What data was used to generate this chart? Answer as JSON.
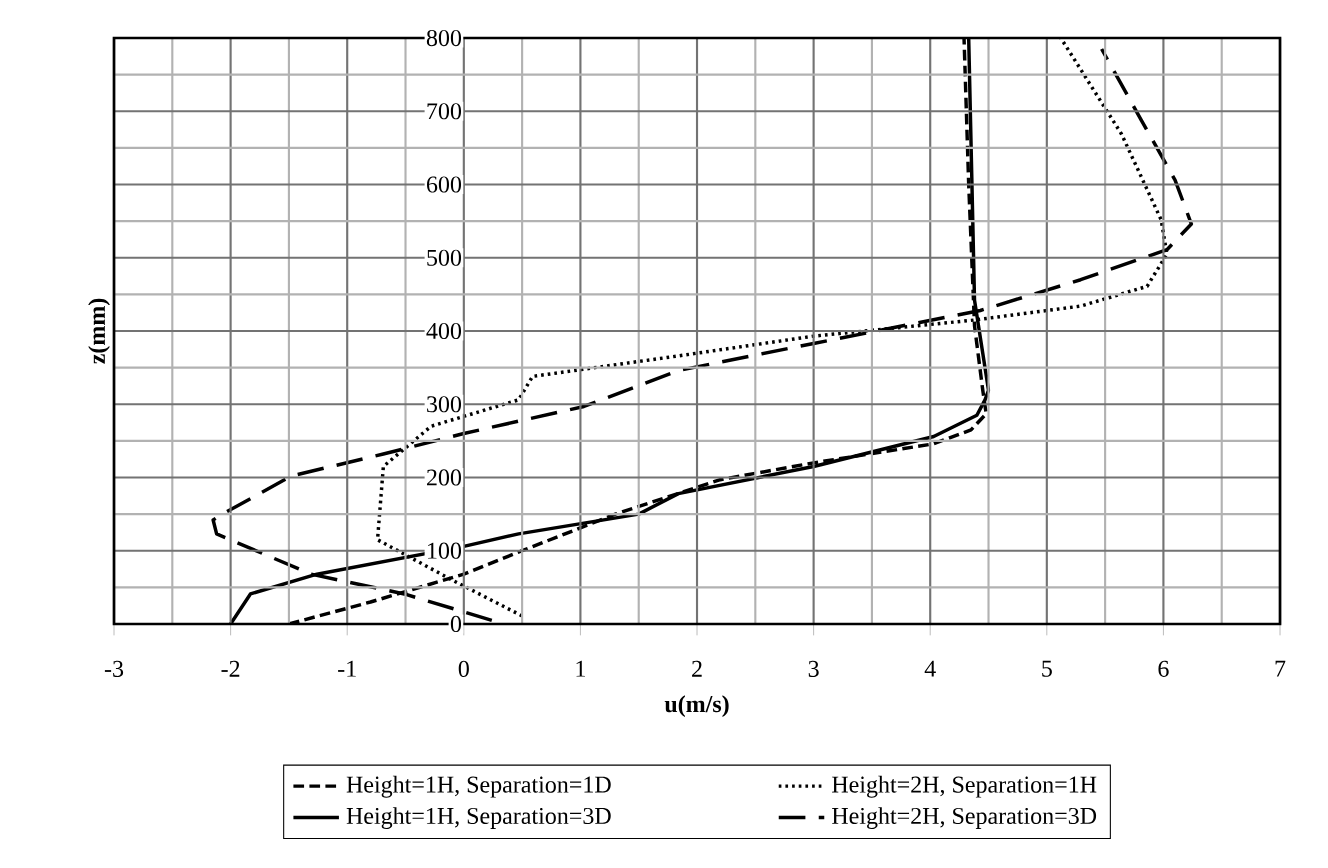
{
  "chart_data": {
    "type": "line",
    "xlabel": "u(m/s)",
    "ylabel": "z(mm)",
    "xlim": [
      -3,
      7
    ],
    "ylim": [
      0,
      800
    ],
    "xticks": [
      -3,
      -2,
      -1,
      0,
      1,
      2,
      3,
      4,
      5,
      6,
      7
    ],
    "yticks": [
      0,
      100,
      200,
      300,
      400,
      500,
      600,
      700,
      800
    ],
    "grid": true,
    "legend": "bottom",
    "marker": "none",
    "series": [
      {
        "name": "Height=1H,  Separation=1D",
        "color": "#000000",
        "line_style": "dashed",
        "x": [
          -1.5,
          -0.8,
          0,
          0.5,
          1.3,
          2.2,
          3.0,
          4.03,
          4.35,
          4.48,
          4.45,
          4.38,
          4.33,
          4.29
        ],
        "values": [
          0,
          30,
          68,
          100,
          150,
          197,
          220,
          246,
          265,
          287,
          320,
          407,
          600,
          800
        ]
      },
      {
        "name": "Height=2H,  Separation=1H",
        "color": "#000000",
        "line_style": "dotted",
        "x": [
          0.5,
          -0.1,
          -0.74,
          -0.69,
          -0.28,
          0.47,
          0.59,
          1.84,
          3.0,
          4.38,
          5.29,
          5.86,
          6.03,
          5.98,
          5.64,
          5.12
        ],
        "values": [
          11,
          60,
          115,
          215,
          270,
          306,
          338,
          366,
          393,
          415,
          434,
          461,
          505,
          552,
          669,
          800
        ]
      },
      {
        "name": "Height=1H, Separation=3D",
        "color": "#000000",
        "line_style": "solid",
        "x": [
          -2,
          -1.83,
          -1.26,
          0,
          0.47,
          1.5,
          1.84,
          3.0,
          4.03,
          4.4,
          4.47,
          4.5,
          4.38,
          4.33
        ],
        "values": [
          0,
          41,
          68,
          106,
          123,
          150,
          178,
          215,
          256,
          285,
          306,
          319,
          442,
          800
        ]
      },
      {
        "name": "Height=2H, Separation=3D",
        "color": "#000000",
        "line_style": "dashed",
        "x": [
          0.24,
          -0.51,
          -1.31,
          -2.12,
          -2.15,
          -2.07,
          -1.48,
          -0.69,
          0,
          1.03,
          1.84,
          3.0,
          4.43,
          5.29,
          6.03,
          6.24,
          6.1,
          5.81,
          5.47
        ],
        "values": [
          5,
          41,
          68,
          123,
          142,
          150,
          202,
          232,
          260,
          297,
          346,
          383,
          428,
          470,
          511,
          546,
          606,
          688,
          785
        ]
      }
    ]
  }
}
